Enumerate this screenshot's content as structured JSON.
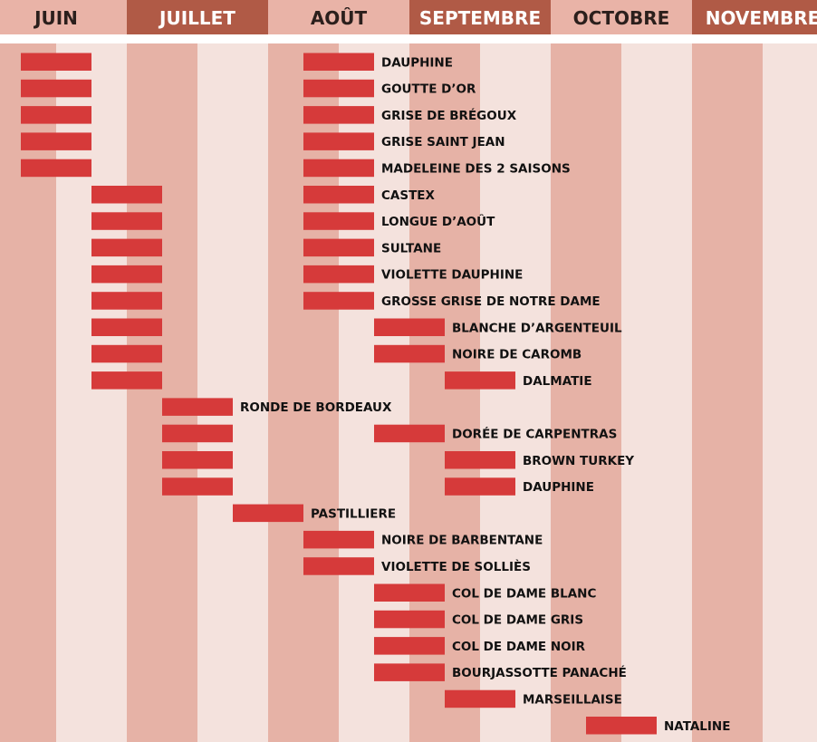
{
  "chart_data": {
    "type": "bar",
    "colors": {
      "bar": "#d63a3a",
      "stripe_dark": "#e6b2a6",
      "stripe_light": "#f4e2dd",
      "header_dark": "#b05a46",
      "header_light": "#e9b3a7",
      "header_text_on_dark": "#ffffff",
      "header_text_on_light": "#2b1f1c"
    },
    "months": [
      "JUIN",
      "JUILLET",
      "AOÛT",
      "SEPTEMBRE",
      "OCTOBRE",
      "NOVEMBRE"
    ],
    "rows": [
      {
        "label": "DAUPHINE",
        "ranges": [
          [
            0.5,
            1.5
          ],
          [
            4.5,
            5.5
          ]
        ]
      },
      {
        "label": "GOUTTE D’OR",
        "ranges": [
          [
            0.5,
            1.5
          ],
          [
            4.5,
            5.5
          ]
        ]
      },
      {
        "label": "GRISE DE BRÉGOUX",
        "ranges": [
          [
            0.5,
            1.5
          ],
          [
            4.5,
            5.5
          ]
        ]
      },
      {
        "label": "GRISE SAINT JEAN",
        "ranges": [
          [
            0.5,
            1.5
          ],
          [
            4.5,
            5.5
          ]
        ]
      },
      {
        "label": "MADELEINE DES 2 SAISONS",
        "ranges": [
          [
            0.5,
            1.5
          ],
          [
            4.5,
            5.5
          ]
        ]
      },
      {
        "label": "CASTEX",
        "ranges": [
          [
            1.5,
            2.5
          ],
          [
            4.5,
            5.5
          ]
        ]
      },
      {
        "label": "LONGUE D’AOÛT",
        "ranges": [
          [
            1.5,
            2.5
          ],
          [
            4.5,
            5.5
          ]
        ]
      },
      {
        "label": "SULTANE",
        "ranges": [
          [
            1.5,
            2.5
          ],
          [
            4.5,
            5.5
          ]
        ]
      },
      {
        "label": "VIOLETTE DAUPHINE",
        "ranges": [
          [
            1.5,
            2.5
          ],
          [
            4.5,
            5.5
          ]
        ]
      },
      {
        "label": "GROSSE GRISE DE NOTRE DAME",
        "ranges": [
          [
            1.5,
            2.5
          ],
          [
            4.5,
            5.5
          ]
        ]
      },
      {
        "label": "BLANCHE D’ARGENTEUIL",
        "ranges": [
          [
            1.5,
            2.5
          ],
          [
            5.5,
            6.5
          ]
        ]
      },
      {
        "label": "NOIRE DE CAROMB",
        "ranges": [
          [
            1.5,
            2.5
          ],
          [
            5.5,
            6.5
          ]
        ]
      },
      {
        "label": "DALMATIE",
        "ranges": [
          [
            1.5,
            2.5
          ],
          [
            6.5,
            7.5
          ]
        ]
      },
      {
        "label": "RONDE DE BORDEAUX",
        "ranges": [
          [
            2.5,
            3.5
          ]
        ]
      },
      {
        "label": "DORÉE DE CARPENTRAS",
        "ranges": [
          [
            2.5,
            3.5
          ],
          [
            5.5,
            6.5
          ]
        ]
      },
      {
        "label": "BROWN TURKEY",
        "ranges": [
          [
            2.5,
            3.5
          ],
          [
            6.5,
            7.5
          ]
        ]
      },
      {
        "label": "DAUPHINE",
        "ranges": [
          [
            2.5,
            3.5
          ],
          [
            6.5,
            7.5
          ]
        ]
      },
      {
        "label": "PASTILLIERE",
        "ranges": [
          [
            3.5,
            4.5
          ]
        ]
      },
      {
        "label": "NOIRE DE BARBENTANE",
        "ranges": [
          [
            4.5,
            5.5
          ]
        ]
      },
      {
        "label": "VIOLETTE DE SOLLIÈS",
        "ranges": [
          [
            4.5,
            5.5
          ]
        ]
      },
      {
        "label": "COL DE DAME BLANC",
        "ranges": [
          [
            5.5,
            6.5
          ]
        ]
      },
      {
        "label": "COL DE DAME GRIS",
        "ranges": [
          [
            5.5,
            6.5
          ]
        ]
      },
      {
        "label": "COL DE DAME NOIR",
        "ranges": [
          [
            5.5,
            6.5
          ]
        ]
      },
      {
        "label": "BOURJASSOTTE PANACHÉ",
        "ranges": [
          [
            5.5,
            6.5
          ]
        ]
      },
      {
        "label": "MARSEILLAISE",
        "ranges": [
          [
            6.5,
            7.5
          ]
        ]
      },
      {
        "label": "NATALINE",
        "ranges": [
          [
            8.5,
            9.5
          ]
        ]
      }
    ]
  }
}
